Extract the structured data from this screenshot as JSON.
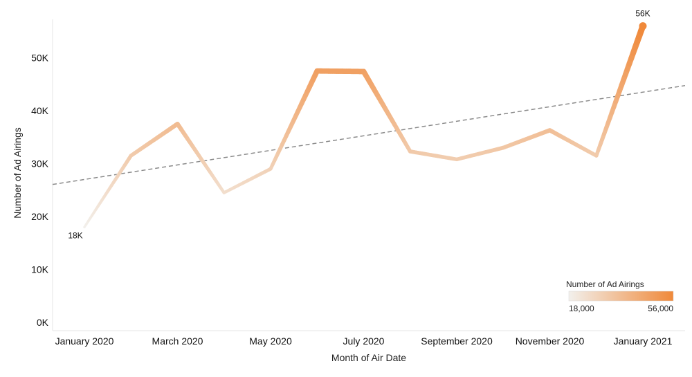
{
  "chart_data": {
    "type": "line",
    "title": "",
    "xlabel": "Month of Air Date",
    "ylabel": "Number of Ad Airings",
    "x": [
      "January 2020",
      "February 2020",
      "March 2020",
      "April 2020",
      "May 2020",
      "June 2020",
      "July 2020",
      "August 2020",
      "September 2020",
      "October 2020",
      "November 2020",
      "December 2020",
      "January 2021"
    ],
    "x_tick_labels": [
      "January 2020",
      "March 2020",
      "May 2020",
      "July 2020",
      "September 2020",
      "November 2020",
      "January 2021"
    ],
    "values": [
      18000,
      31500,
      37500,
      24500,
      29000,
      47500,
      47400,
      32300,
      30800,
      33000,
      36300,
      31500,
      56000
    ],
    "ylim": [
      0,
      60000
    ],
    "y_ticks": [
      0,
      10000,
      20000,
      30000,
      40000,
      50000
    ],
    "y_tick_labels": [
      "0K",
      "10K",
      "20K",
      "30K",
      "40K",
      "50K"
    ],
    "data_labels": [
      {
        "index": 0,
        "text": "18K"
      },
      {
        "index": 12,
        "text": "56K"
      }
    ],
    "trend_line": {
      "style": "dashed",
      "color": "#8a8a8a",
      "start_value": 27000,
      "end_value": 43500
    },
    "grid": false,
    "color_scale": {
      "title": "Number of Ad Airings",
      "min_label": "18,000",
      "max_label": "56,000",
      "min_value": 18000,
      "max_value": 56000,
      "min_color": "#f2f0ec",
      "max_color": "#f0893a"
    },
    "legend_position": "bottom-right"
  }
}
